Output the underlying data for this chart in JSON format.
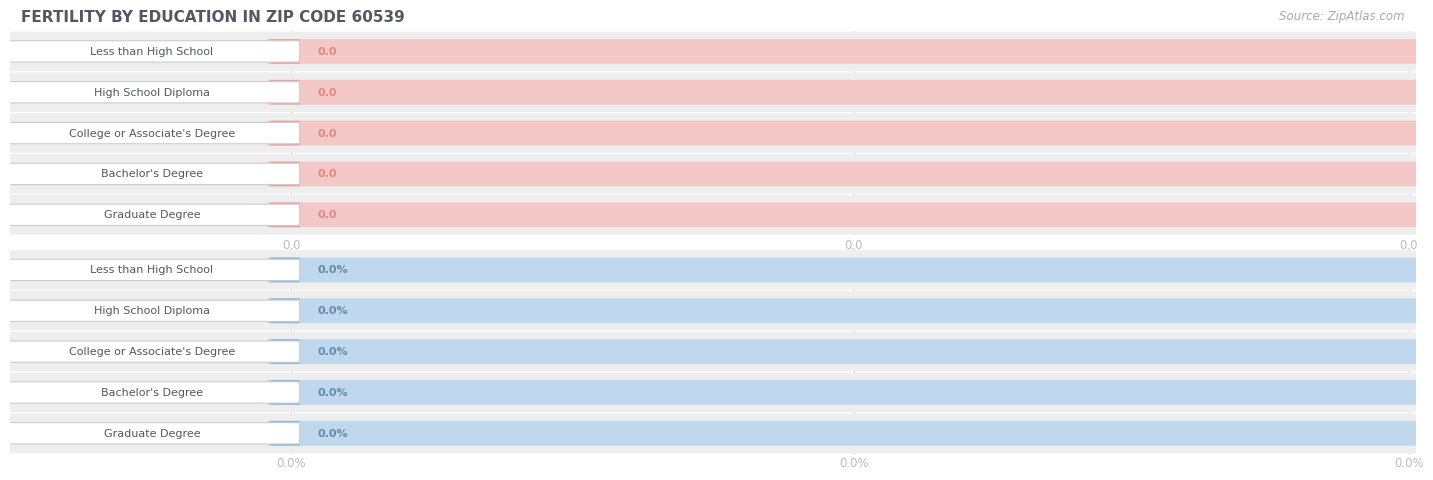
{
  "title": "FERTILITY BY EDUCATION IN ZIP CODE 60539",
  "source": "Source: ZipAtlas.com",
  "categories": [
    "Less than High School",
    "High School Diploma",
    "College or Associate's Degree",
    "Bachelor's Degree",
    "Graduate Degree"
  ],
  "top_values": [
    0.0,
    0.0,
    0.0,
    0.0,
    0.0
  ],
  "bottom_values": [
    0.0,
    0.0,
    0.0,
    0.0,
    0.0
  ],
  "top_bar_color": "#f0a0a0",
  "top_bar_bg": "#f5c8c8",
  "bottom_bar_color": "#8ab8d8",
  "bottom_bar_bg": "#c0d8ee",
  "row_bg": "#eeeeee",
  "row_bg_alt": "#f7f7f7",
  "top_tick_labels": [
    "0.0",
    "0.0",
    "0.0"
  ],
  "bottom_tick_labels": [
    "0.0%",
    "0.0%",
    "0.0%"
  ],
  "title_color": "#555566",
  "source_color": "#aaaaaa",
  "label_text_color": "#555566",
  "value_text_top": "#e08888",
  "value_text_bottom": "#6688aa",
  "tick_color": "#bbbbbb",
  "grid_color": "#cccccc",
  "label_pill_edge": "#cccccc",
  "figsize": [
    14.06,
    4.75
  ],
  "dpi": 100
}
